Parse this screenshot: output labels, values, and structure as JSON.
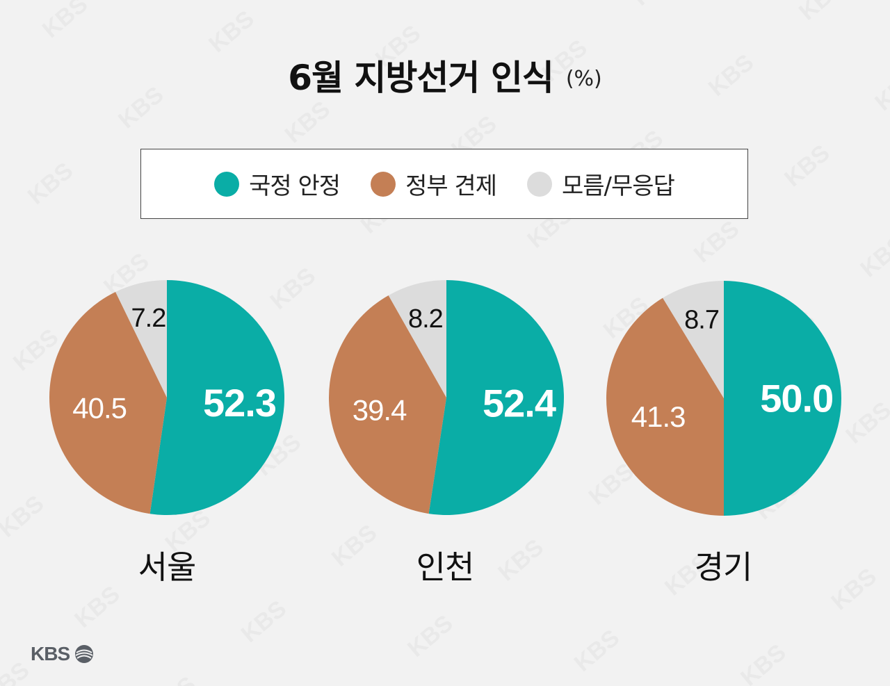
{
  "title": "6월 지방선거 인식",
  "unit": "(%)",
  "legend": [
    {
      "label": "국정 안정",
      "color": "#0aada6"
    },
    {
      "label": "정부 견제",
      "color": "#c47f55"
    },
    {
      "label": "모름/무응답",
      "color": "#dcdcdc"
    }
  ],
  "logo": "KBS",
  "chart_data": [
    {
      "type": "pie",
      "title": "서울",
      "categories": [
        "국정 안정",
        "정부 견제",
        "모름/무응답"
      ],
      "values": [
        52.3,
        40.5,
        7.2
      ]
    },
    {
      "type": "pie",
      "title": "인천",
      "categories": [
        "국정 안정",
        "정부 견제",
        "모름/무응답"
      ],
      "values": [
        52.4,
        39.4,
        8.2
      ]
    },
    {
      "type": "pie",
      "title": "경기",
      "categories": [
        "국정 안정",
        "정부 견제",
        "모름/무응답"
      ],
      "values": [
        50.0,
        41.3,
        8.7
      ]
    }
  ]
}
